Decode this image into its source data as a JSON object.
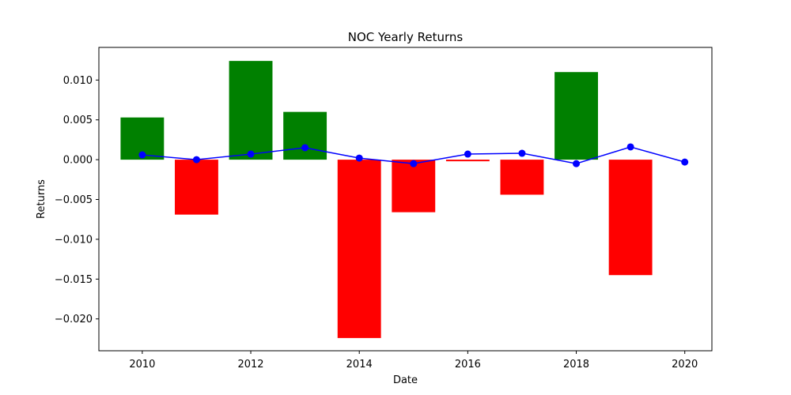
{
  "chart_data": {
    "type": "bar",
    "title": "NOC Yearly Returns",
    "xlabel": "Date",
    "ylabel": "Returns",
    "xlim": [
      2009.2,
      2020.5
    ],
    "ylim": [
      -0.024,
      0.0141
    ],
    "grid": false,
    "x_ticks": [
      2010,
      2012,
      2014,
      2016,
      2018,
      2020
    ],
    "x_tick_labels": [
      "2010",
      "2012",
      "2014",
      "2016",
      "2018",
      "2020"
    ],
    "y_ticks": [
      -0.02,
      -0.015,
      -0.01,
      -0.005,
      0.0,
      0.005,
      0.01
    ],
    "y_tick_labels": [
      "−0.020",
      "−0.015",
      "−0.010",
      "−0.005",
      "0.000",
      "0.005",
      "0.010"
    ],
    "bars": {
      "x": [
        2010,
        2011,
        2012,
        2013,
        2014,
        2015,
        2016,
        2017,
        2018,
        2019
      ],
      "values": [
        0.0053,
        -0.0069,
        0.0124,
        0.006,
        -0.0224,
        -0.0066,
        -0.0002,
        -0.0044,
        0.011,
        -0.0145
      ],
      "width": 0.8,
      "positive_color": "#008000",
      "negative_color": "#ff0000"
    },
    "line": {
      "x": [
        2010,
        2011,
        2012,
        2013,
        2014,
        2015,
        2016,
        2017,
        2018,
        2019,
        2020
      ],
      "values": [
        0.0006,
        0.0,
        0.0007,
        0.0015,
        0.0002,
        -0.0005,
        0.0007,
        0.0008,
        -0.0005,
        0.0016,
        -0.0003
      ],
      "color": "#0000ff",
      "marker": "circle"
    }
  }
}
